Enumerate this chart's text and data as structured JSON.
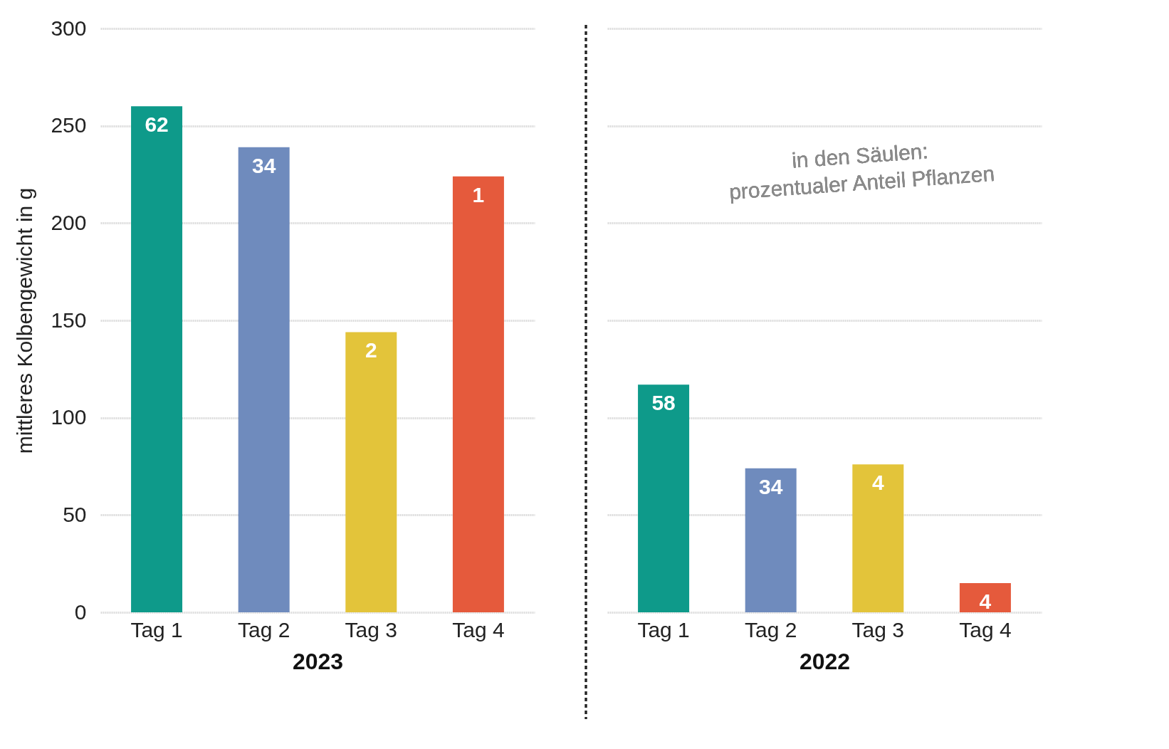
{
  "chart_data": [
    {
      "type": "bar",
      "categories": [
        "Tag 1",
        "Tag 2",
        "Tag 3",
        "Tag 4"
      ],
      "values": [
        260,
        239,
        144,
        224
      ],
      "colors": [
        "#0e9a8a",
        "#6f8bbd",
        "#e3c43a",
        "#e55a3c"
      ],
      "xlabel": "2023",
      "ylabel": "mittleres Kolbengewicht in g",
      "ylim": [
        0,
        300
      ],
      "yticks": [
        0,
        50,
        100,
        150,
        200,
        250,
        300
      ],
      "grid": "y",
      "annotations": [
        {
          "text": "62",
          "x": "Tag 1",
          "y": 260
        },
        {
          "text": "34",
          "x": "Tag 2",
          "y": 239
        },
        {
          "text": "2",
          "x": "Tag 3",
          "y": 144
        },
        {
          "text": "1",
          "x": "Tag 4",
          "y": 224
        }
      ]
    },
    {
      "type": "bar",
      "categories": [
        "Tag 1",
        "Tag 2",
        "Tag 3",
        "Tag 4"
      ],
      "values": [
        117,
        74,
        76,
        15
      ],
      "colors": [
        "#0e9a8a",
        "#6f8bbd",
        "#e3c43a",
        "#e55a3c"
      ],
      "xlabel": "2022",
      "ylim": [
        0,
        300
      ],
      "yticks": [
        0,
        50,
        100,
        150,
        200,
        250,
        300
      ],
      "grid": "y",
      "tick_labels": "x",
      "annotations": [
        {
          "text": "58",
          "x": "Tag 1",
          "y": 117
        },
        {
          "text": "34",
          "x": "Tag 2",
          "y": 74
        },
        {
          "text": "4",
          "x": "Tag 3",
          "y": 76
        },
        {
          "text": "4",
          "x": "Tag 4",
          "y": 15
        },
        "in den Säulen:\nprozentualer Anteil Pflanzen"
      ]
    }
  ]
}
